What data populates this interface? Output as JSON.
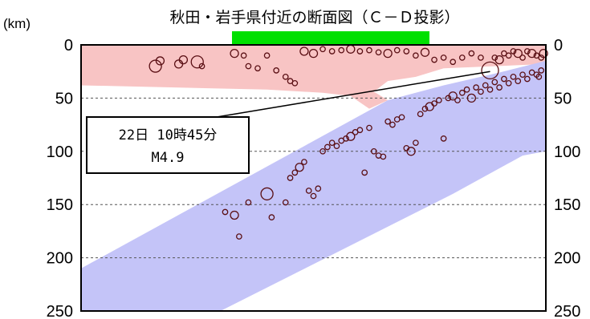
{
  "chart_data": {
    "type": "scatter",
    "title": "秋田・岩手県付近の断面図（Ｃ－Ｄ投影）",
    "unit_label": "(km)",
    "yaxis": {
      "label": "",
      "lim": [
        0,
        250
      ],
      "ticks": [
        "0",
        "50",
        "100",
        "150",
        "200",
        "250"
      ],
      "inverted": true
    },
    "grid": {
      "y": true,
      "style": "dashed"
    },
    "colors": {
      "crust_zone": "#f8c4c4",
      "slab_zone": "#c4c4f8",
      "marker": "#5a0f14",
      "highlight_bar": "#00e000"
    },
    "regions": [
      {
        "name": "crust",
        "color": "#f8c4c4",
        "depth_range": [
          0,
          45
        ]
      },
      {
        "name": "slab",
        "color": "#c4c4f8",
        "depth_range": [
          15,
          250
        ]
      }
    ],
    "annotation": {
      "line1": "22日 10時45分",
      "line2": "M4.9",
      "depth": 25
    },
    "points": [
      {
        "x": 0.16,
        "y": 20,
        "size": 3
      },
      {
        "x": 0.17,
        "y": 15,
        "size": 2
      },
      {
        "x": 0.21,
        "y": 18,
        "size": 2
      },
      {
        "x": 0.22,
        "y": 14,
        "size": 2
      },
      {
        "x": 0.25,
        "y": 16,
        "size": 3
      },
      {
        "x": 0.26,
        "y": 20,
        "size": 1
      },
      {
        "x": 0.33,
        "y": 8,
        "size": 2
      },
      {
        "x": 0.35,
        "y": 10,
        "size": 1
      },
      {
        "x": 0.36,
        "y": 20,
        "size": 1
      },
      {
        "x": 0.38,
        "y": 22,
        "size": 1
      },
      {
        "x": 0.4,
        "y": 10,
        "size": 1
      },
      {
        "x": 0.42,
        "y": 24,
        "size": 1
      },
      {
        "x": 0.44,
        "y": 30,
        "size": 1
      },
      {
        "x": 0.45,
        "y": 34,
        "size": 1
      },
      {
        "x": 0.46,
        "y": 36,
        "size": 1
      },
      {
        "x": 0.48,
        "y": 6,
        "size": 2
      },
      {
        "x": 0.5,
        "y": 8,
        "size": 2
      },
      {
        "x": 0.52,
        "y": 4,
        "size": 1
      },
      {
        "x": 0.54,
        "y": 6,
        "size": 1
      },
      {
        "x": 0.56,
        "y": 5,
        "size": 1
      },
      {
        "x": 0.58,
        "y": 4,
        "size": 2
      },
      {
        "x": 0.6,
        "y": 6,
        "size": 1
      },
      {
        "x": 0.62,
        "y": 5,
        "size": 1
      },
      {
        "x": 0.64,
        "y": 7,
        "size": 1
      },
      {
        "x": 0.66,
        "y": 8,
        "size": 2
      },
      {
        "x": 0.68,
        "y": 5,
        "size": 1
      },
      {
        "x": 0.7,
        "y": 6,
        "size": 1
      },
      {
        "x": 0.72,
        "y": 10,
        "size": 1
      },
      {
        "x": 0.74,
        "y": 7,
        "size": 2
      },
      {
        "x": 0.76,
        "y": 14,
        "size": 1
      },
      {
        "x": 0.78,
        "y": 12,
        "size": 1
      },
      {
        "x": 0.8,
        "y": 16,
        "size": 1
      },
      {
        "x": 0.82,
        "y": 12,
        "size": 1
      },
      {
        "x": 0.84,
        "y": 8,
        "size": 1
      },
      {
        "x": 0.86,
        "y": 12,
        "size": 1
      },
      {
        "x": 0.88,
        "y": 24,
        "size": 4
      },
      {
        "x": 0.89,
        "y": 12,
        "size": 1
      },
      {
        "x": 0.9,
        "y": 14,
        "size": 2
      },
      {
        "x": 0.91,
        "y": 8,
        "size": 1
      },
      {
        "x": 0.92,
        "y": 10,
        "size": 1
      },
      {
        "x": 0.93,
        "y": 6,
        "size": 1
      },
      {
        "x": 0.94,
        "y": 8,
        "size": 2
      },
      {
        "x": 0.95,
        "y": 12,
        "size": 1
      },
      {
        "x": 0.96,
        "y": 6,
        "size": 1
      },
      {
        "x": 0.97,
        "y": 8,
        "size": 2
      },
      {
        "x": 0.98,
        "y": 10,
        "size": 1
      },
      {
        "x": 0.99,
        "y": 12,
        "size": 1
      },
      {
        "x": 0.995,
        "y": 8,
        "size": 2
      },
      {
        "x": 0.31,
        "y": 157,
        "size": 1
      },
      {
        "x": 0.33,
        "y": 160,
        "size": 2
      },
      {
        "x": 0.34,
        "y": 180,
        "size": 1
      },
      {
        "x": 0.36,
        "y": 148,
        "size": 1
      },
      {
        "x": 0.4,
        "y": 140,
        "size": 3
      },
      {
        "x": 0.41,
        "y": 162,
        "size": 1
      },
      {
        "x": 0.44,
        "y": 148,
        "size": 1
      },
      {
        "x": 0.45,
        "y": 125,
        "size": 1
      },
      {
        "x": 0.46,
        "y": 120,
        "size": 1
      },
      {
        "x": 0.47,
        "y": 115,
        "size": 2
      },
      {
        "x": 0.48,
        "y": 110,
        "size": 1
      },
      {
        "x": 0.49,
        "y": 137,
        "size": 1
      },
      {
        "x": 0.5,
        "y": 142,
        "size": 1
      },
      {
        "x": 0.51,
        "y": 135,
        "size": 1
      },
      {
        "x": 0.52,
        "y": 100,
        "size": 1
      },
      {
        "x": 0.53,
        "y": 96,
        "size": 1
      },
      {
        "x": 0.54,
        "y": 92,
        "size": 1
      },
      {
        "x": 0.55,
        "y": 95,
        "size": 1
      },
      {
        "x": 0.56,
        "y": 90,
        "size": 1
      },
      {
        "x": 0.57,
        "y": 88,
        "size": 1
      },
      {
        "x": 0.58,
        "y": 86,
        "size": 2
      },
      {
        "x": 0.59,
        "y": 82,
        "size": 1
      },
      {
        "x": 0.6,
        "y": 80,
        "size": 1
      },
      {
        "x": 0.61,
        "y": 120,
        "size": 1
      },
      {
        "x": 0.62,
        "y": 78,
        "size": 1
      },
      {
        "x": 0.63,
        "y": 100,
        "size": 1
      },
      {
        "x": 0.64,
        "y": 104,
        "size": 1
      },
      {
        "x": 0.65,
        "y": 105,
        "size": 1
      },
      {
        "x": 0.66,
        "y": 72,
        "size": 1
      },
      {
        "x": 0.67,
        "y": 75,
        "size": 1
      },
      {
        "x": 0.68,
        "y": 70,
        "size": 1
      },
      {
        "x": 0.69,
        "y": 68,
        "size": 1
      },
      {
        "x": 0.7,
        "y": 97,
        "size": 1
      },
      {
        "x": 0.71,
        "y": 100,
        "size": 2
      },
      {
        "x": 0.72,
        "y": 92,
        "size": 1
      },
      {
        "x": 0.73,
        "y": 65,
        "size": 1
      },
      {
        "x": 0.74,
        "y": 60,
        "size": 1
      },
      {
        "x": 0.75,
        "y": 58,
        "size": 2
      },
      {
        "x": 0.76,
        "y": 55,
        "size": 1
      },
      {
        "x": 0.77,
        "y": 52,
        "size": 1
      },
      {
        "x": 0.78,
        "y": 88,
        "size": 1
      },
      {
        "x": 0.79,
        "y": 50,
        "size": 1
      },
      {
        "x": 0.8,
        "y": 48,
        "size": 2
      },
      {
        "x": 0.81,
        "y": 52,
        "size": 1
      },
      {
        "x": 0.82,
        "y": 45,
        "size": 1
      },
      {
        "x": 0.83,
        "y": 42,
        "size": 1
      },
      {
        "x": 0.84,
        "y": 50,
        "size": 2
      },
      {
        "x": 0.85,
        "y": 40,
        "size": 1
      },
      {
        "x": 0.86,
        "y": 44,
        "size": 1
      },
      {
        "x": 0.87,
        "y": 38,
        "size": 1
      },
      {
        "x": 0.88,
        "y": 42,
        "size": 1
      },
      {
        "x": 0.89,
        "y": 35,
        "size": 1
      },
      {
        "x": 0.9,
        "y": 40,
        "size": 1
      },
      {
        "x": 0.91,
        "y": 32,
        "size": 1
      },
      {
        "x": 0.92,
        "y": 36,
        "size": 1
      },
      {
        "x": 0.93,
        "y": 30,
        "size": 1
      },
      {
        "x": 0.94,
        "y": 34,
        "size": 1
      },
      {
        "x": 0.95,
        "y": 28,
        "size": 1
      },
      {
        "x": 0.96,
        "y": 32,
        "size": 1
      },
      {
        "x": 0.97,
        "y": 26,
        "size": 1
      },
      {
        "x": 0.98,
        "y": 28,
        "size": 1
      },
      {
        "x": 0.99,
        "y": 24,
        "size": 1
      },
      {
        "x": 0.985,
        "y": 30,
        "size": 1
      }
    ]
  }
}
